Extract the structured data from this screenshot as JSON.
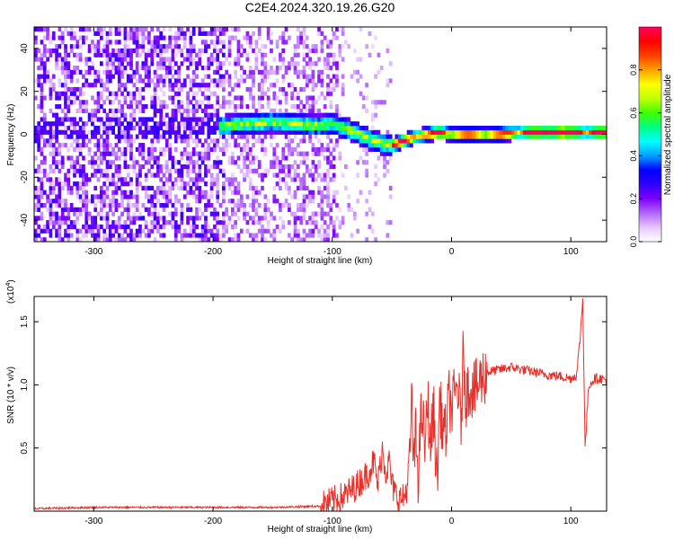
{
  "page": {
    "title": "C2E4.2024.320.19.26.G20"
  },
  "chart_data": [
    {
      "type": "heatmap",
      "title": "C2E4.2024.320.19.26.G20",
      "xlabel": "Height of straight line (km)",
      "ylabel": "Frequency (Hz)",
      "xlim": [
        -350,
        130
      ],
      "ylim": [
        -50,
        50
      ],
      "x_ticks": [
        -300,
        -200,
        -100,
        0,
        100
      ],
      "y_ticks": [
        -40,
        -20,
        0,
        20,
        40
      ],
      "colorbar": {
        "label": "Normalized spectral amplitude",
        "range": [
          0,
          1
        ],
        "ticks": [
          0.0,
          0.2,
          0.4,
          0.6,
          0.8
        ],
        "tick_labels": [
          "0.0",
          "0.2",
          "0.4",
          "0.6",
          "0.8"
        ],
        "colors": [
          "#ffffff",
          "#e6c6ff",
          "#b266ff",
          "#7f00ff",
          "#3000ff",
          "#0000ff",
          "#00a0ff",
          "#00ffff",
          "#00ff80",
          "#40ff00",
          "#c0ff00",
          "#ffff00",
          "#ffa000",
          "#ff4000",
          "#ff0000",
          "#ff0060"
        ]
      },
      "ridge": {
        "x": [
          -190,
          -170,
          -150,
          -130,
          -110,
          -100,
          -90,
          -80,
          -70,
          -60,
          -50,
          -40,
          -30,
          -20,
          -10,
          0,
          20,
          40,
          60,
          80,
          100,
          110,
          120,
          130
        ],
        "y": [
          4,
          5,
          6,
          5,
          4,
          5,
          3,
          1,
          -2,
          -4,
          -5,
          -3,
          -1,
          0,
          1,
          0,
          0,
          0,
          1,
          1,
          1,
          1,
          1,
          1
        ]
      }
    },
    {
      "type": "line",
      "xlabel": "Height of straight line (km)",
      "ylabel": "SNR (10 * v/v)",
      "y_multiplier_label": "(x10",
      "y_multiplier_exp": "4",
      "y_multiplier_close": ")",
      "xlim": [
        -350,
        130
      ],
      "ylim": [
        0,
        1.7
      ],
      "x_ticks": [
        -300,
        -200,
        -100,
        0,
        100
      ],
      "y_ticks": [
        0.5,
        1.0,
        1.5
      ],
      "y_tick_labels": [
        "0.5",
        "1.0",
        "1.5"
      ],
      "color": "#e8302a",
      "x": [
        -350,
        -300,
        -250,
        -200,
        -150,
        -110,
        -100,
        -90,
        -80,
        -75,
        -70,
        -65,
        -62,
        -58,
        -55,
        -52,
        -50,
        -45,
        -40,
        -37,
        -35,
        -33,
        -32,
        -30,
        -28,
        -25,
        -22,
        -20,
        -18,
        -15,
        -12,
        -10,
        -8,
        -5,
        -2,
        0,
        5,
        8,
        10,
        12,
        15,
        20,
        25,
        30,
        40,
        50,
        60,
        70,
        80,
        90,
        100,
        105,
        108,
        110,
        112,
        115,
        120,
        125,
        130
      ],
      "y": [
        0.02,
        0.03,
        0.03,
        0.03,
        0.03,
        0.04,
        0.08,
        0.12,
        0.2,
        0.25,
        0.3,
        0.4,
        0.2,
        0.5,
        0.3,
        0.4,
        0.2,
        0.1,
        0.1,
        0.2,
        0.5,
        0.9,
        0.3,
        0.6,
        0.3,
        0.8,
        0.5,
        0.9,
        0.5,
        0.8,
        0.2,
        0.9,
        0.7,
        0.6,
        0.9,
        0.8,
        1.0,
        0.7,
        1.3,
        0.9,
        1.0,
        0.95,
        1.05,
        1.1,
        1.12,
        1.14,
        1.12,
        1.1,
        1.08,
        1.07,
        1.05,
        1.08,
        1.4,
        1.68,
        0.5,
        1.0,
        1.05,
        1.05,
        1.04
      ]
    }
  ]
}
